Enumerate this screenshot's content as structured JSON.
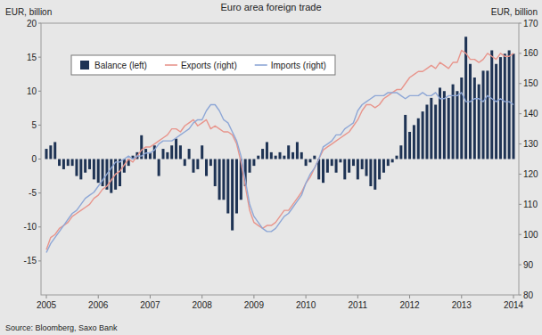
{
  "chart_data": {
    "type": "bar",
    "title": "Euro area foreign trade",
    "y_label": "EUR, billion",
    "y2_label": "EUR, billion",
    "source": "Source: Bloomberg, Saxo Bank",
    "categories": [
      "2005",
      null,
      null,
      null,
      null,
      null,
      null,
      null,
      null,
      null,
      null,
      null,
      "2006",
      null,
      null,
      null,
      null,
      null,
      null,
      null,
      null,
      null,
      null,
      null,
      "2007",
      null,
      null,
      null,
      null,
      null,
      null,
      null,
      null,
      null,
      null,
      null,
      "2008",
      null,
      null,
      null,
      null,
      null,
      null,
      null,
      null,
      null,
      null,
      null,
      "2009",
      null,
      null,
      null,
      null,
      null,
      null,
      null,
      null,
      null,
      null,
      null,
      "2010",
      null,
      null,
      null,
      null,
      null,
      null,
      null,
      null,
      null,
      null,
      null,
      "2011",
      null,
      null,
      null,
      null,
      null,
      null,
      null,
      null,
      null,
      null,
      null,
      "2012",
      null,
      null,
      null,
      null,
      null,
      null,
      null,
      null,
      null,
      null,
      null,
      "2013",
      null,
      null,
      null,
      null,
      null,
      null,
      null,
      null,
      null,
      null,
      null,
      "2014"
    ],
    "series": [
      {
        "name": "Balance (left)",
        "type": "bar",
        "color": "#1e3354",
        "values": [
          1.5,
          2,
          2.5,
          -1,
          -1.5,
          -1,
          -1,
          -2.5,
          -3,
          -2,
          -1.5,
          -3,
          -3.5,
          -4,
          -4.5,
          -5,
          -4.5,
          -4,
          -2,
          -1,
          0.5,
          1,
          3.5,
          1.5,
          1,
          2,
          -2.5,
          1.5,
          1,
          2,
          3,
          2,
          -1,
          1.5,
          -2,
          -1.5,
          2,
          -2.5,
          -1,
          -4,
          -6,
          -6,
          -8,
          -10.5,
          -8,
          -6,
          -4,
          -2,
          -1,
          0.5,
          1.5,
          2.5,
          1,
          0.5,
          1,
          0.5,
          2,
          1,
          2.5,
          1,
          -1,
          -0.5,
          0.5,
          -3,
          -3.5,
          -2,
          -1,
          -2,
          -0.5,
          -3,
          -2,
          -1,
          -3,
          -1.5,
          -2.5,
          -4,
          -4.5,
          -3,
          -2,
          -1,
          -0.5,
          0.5,
          2,
          6.5,
          4,
          5,
          6,
          7,
          8,
          9,
          8,
          10.5,
          10,
          9,
          11,
          10,
          12,
          18,
          14,
          12,
          11,
          13,
          13,
          16,
          14,
          15,
          15.5,
          16,
          15.5
        ]
      },
      {
        "name": "Exports (right)",
        "type": "line",
        "axis": "y2",
        "color": "#e8958c",
        "values": [
          95,
          99,
          100,
          102,
          103,
          104,
          106,
          107,
          108,
          109,
          110,
          112,
          113,
          115,
          116,
          118,
          120,
          121,
          123,
          125,
          124,
          126,
          128,
          129,
          129,
          130,
          131,
          132,
          133,
          135,
          135,
          134,
          136,
          137,
          138,
          136,
          137,
          138,
          135,
          136,
          135,
          134,
          134,
          133,
          130,
          124,
          116,
          108,
          104,
          103,
          102,
          103,
          103,
          104,
          106,
          108,
          108,
          110,
          112,
          114,
          117,
          119,
          122,
          125,
          128,
          129,
          130,
          131,
          132,
          133,
          134,
          136,
          138,
          141,
          143,
          143,
          142,
          143,
          145,
          146,
          147,
          148,
          148,
          150,
          152,
          153,
          154,
          154,
          155,
          156,
          155,
          157,
          156,
          155,
          157,
          157,
          161,
          160,
          158,
          158,
          157,
          158,
          160,
          159,
          158,
          160,
          159,
          159,
          160
        ]
      },
      {
        "name": "Imports (right)",
        "type": "line",
        "axis": "y2",
        "color": "#8ea7d6",
        "values": [
          94,
          97,
          99,
          101,
          103,
          105,
          107,
          108,
          110,
          112,
          113,
          114,
          116,
          118,
          120,
          122,
          124,
          124,
          125,
          126,
          125,
          126,
          126,
          127,
          127,
          128,
          130,
          131,
          131,
          131,
          132,
          133,
          134,
          135,
          137,
          138,
          138,
          141,
          143,
          143,
          141,
          138,
          137,
          134,
          131,
          126,
          118,
          110,
          106,
          104,
          102,
          101,
          101,
          102,
          104,
          106,
          107,
          109,
          111,
          113,
          117,
          120,
          122,
          125,
          129,
          130,
          131,
          133,
          133,
          135,
          136,
          137,
          141,
          143,
          144,
          145,
          146,
          146,
          146,
          147,
          147,
          147,
          146,
          145,
          146,
          146,
          146,
          147,
          146,
          146,
          147,
          145,
          145,
          146,
          146,
          146,
          147,
          144,
          144,
          145,
          145,
          144,
          146,
          145,
          144,
          145,
          144,
          144,
          143
        ]
      }
    ],
    "ylim": [
      -20,
      20
    ],
    "yticks": [
      -15,
      -10,
      -5,
      0,
      5,
      10,
      15,
      20
    ],
    "y2lim": [
      80,
      170
    ],
    "y2ticks": [
      80,
      90,
      100,
      110,
      120,
      130,
      140,
      150,
      160,
      170
    ],
    "grid": false,
    "legend": "upper left"
  }
}
